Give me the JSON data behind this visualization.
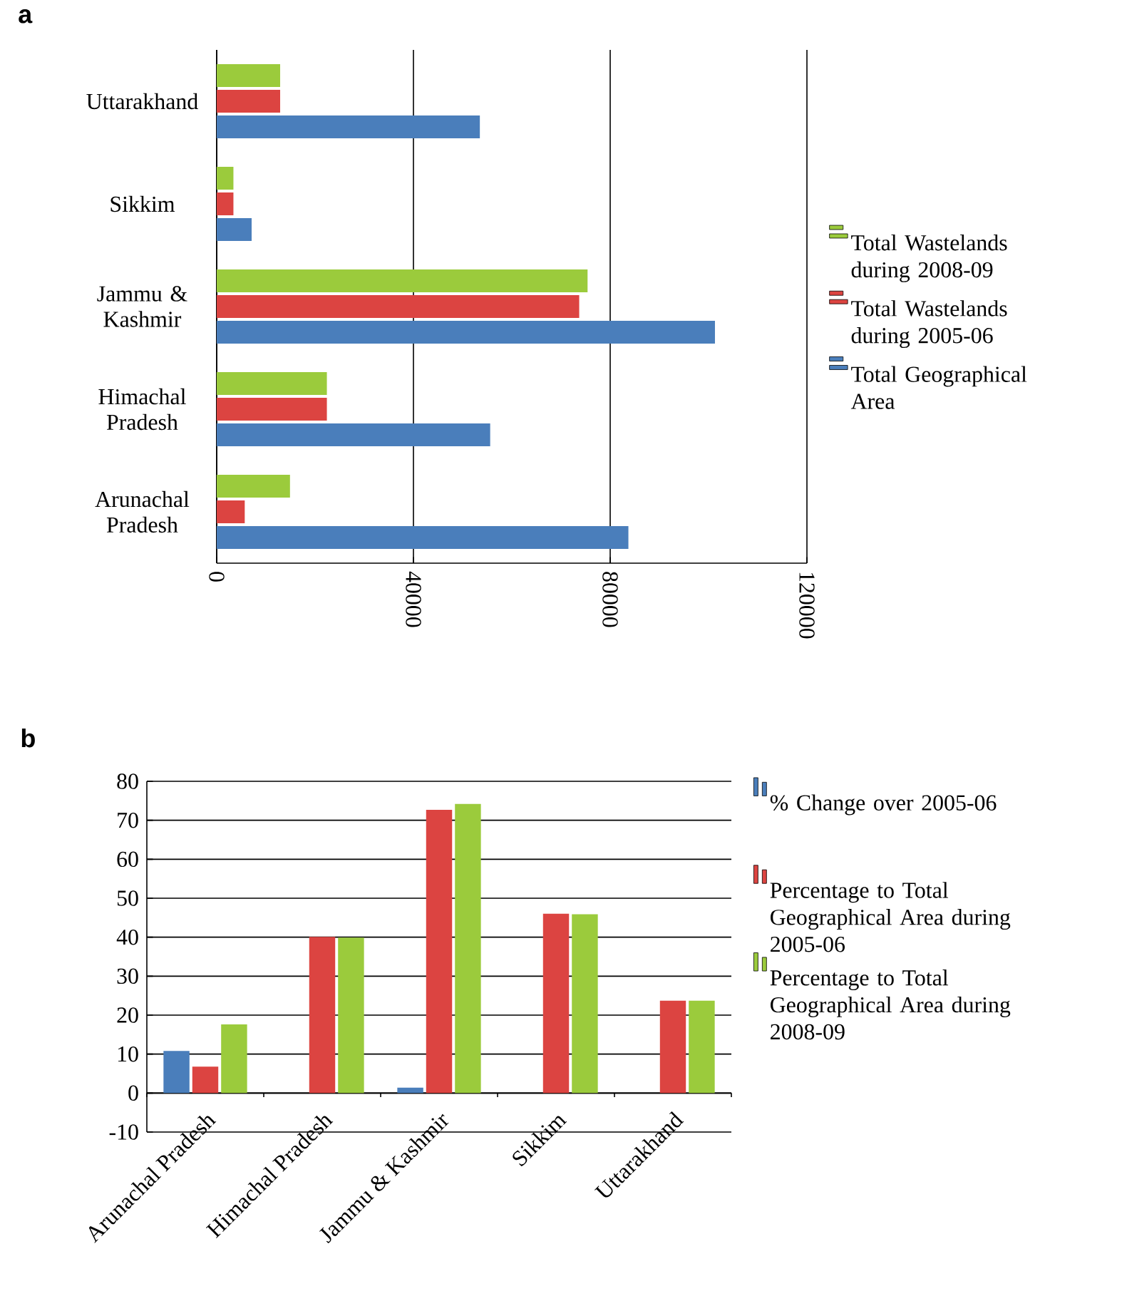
{
  "chart_data": [
    {
      "type": "bar",
      "title": "a",
      "orientation": "horizontal",
      "categories": [
        "Uttarakhand",
        "Sikkim",
        "Jammu & Kashmir",
        "Himachal Pradesh",
        "Arunachal Pradesh"
      ],
      "series": [
        {
          "name": "Total Geographical Area",
          "color": "#4a7ebb",
          "values": [
            53500,
            7100,
            101300,
            55600,
            83700
          ]
        },
        {
          "name": "Total Wastelands during 2005-06",
          "color": "#dc4441",
          "values": [
            12900,
            3400,
            73700,
            22400,
            5700
          ]
        },
        {
          "name": "Total Wastelands during 2008-09",
          "color": "#9bcb3c",
          "values": [
            12900,
            3400,
            75400,
            22400,
            14900
          ]
        }
      ],
      "xlim": [
        0,
        120000
      ],
      "xticks": [
        0,
        40000,
        80000,
        120000
      ],
      "grid": "x",
      "legend": "right"
    },
    {
      "type": "bar",
      "title": "b",
      "categories": [
        "Arunachal Pradesh",
        "Himachal Pradesh",
        "Jammu & Kashmir",
        "Sikkim",
        "Uttarakhand"
      ],
      "series": [
        {
          "name": "% Change over 2005-06",
          "color": "#4a7ebb",
          "values": [
            10.8,
            null,
            1.4,
            null,
            null
          ]
        },
        {
          "name": "Percentage to Total Geographical Area during 2005-06",
          "color": "#dc4441",
          "values": [
            6.8,
            40.1,
            72.7,
            46.0,
            23.7
          ]
        },
        {
          "name": "Percentage to Total Geographical Area during 2008-09",
          "color": "#9bcb3c",
          "values": [
            17.6,
            39.9,
            74.2,
            45.9,
            23.7
          ]
        }
      ],
      "ylim": [
        -10,
        80
      ],
      "yticks": [
        -10,
        0,
        10,
        20,
        30,
        40,
        50,
        60,
        70,
        80
      ],
      "grid": "y",
      "legend": "top right"
    }
  ]
}
